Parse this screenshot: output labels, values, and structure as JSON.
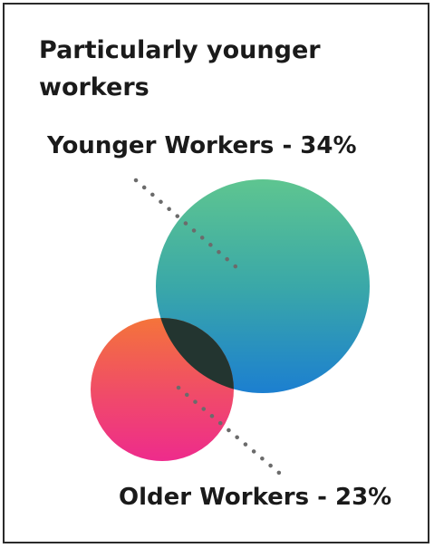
{
  "chart_data": {
    "type": "bubble",
    "title": "Particularly younger workers",
    "series": [
      {
        "label": "Younger Workers - 34%",
        "value": 34,
        "gradient": [
          "#5ec590",
          "#3aa8a8",
          "#1c7fd0"
        ]
      },
      {
        "label": "Older Workers - 23%",
        "value": 23,
        "gradient": [
          "#f4743a",
          "#f04a6a",
          "#ee2b8c"
        ]
      }
    ],
    "overlap_color": "#233530",
    "leader_color": "#6b6b6b"
  }
}
